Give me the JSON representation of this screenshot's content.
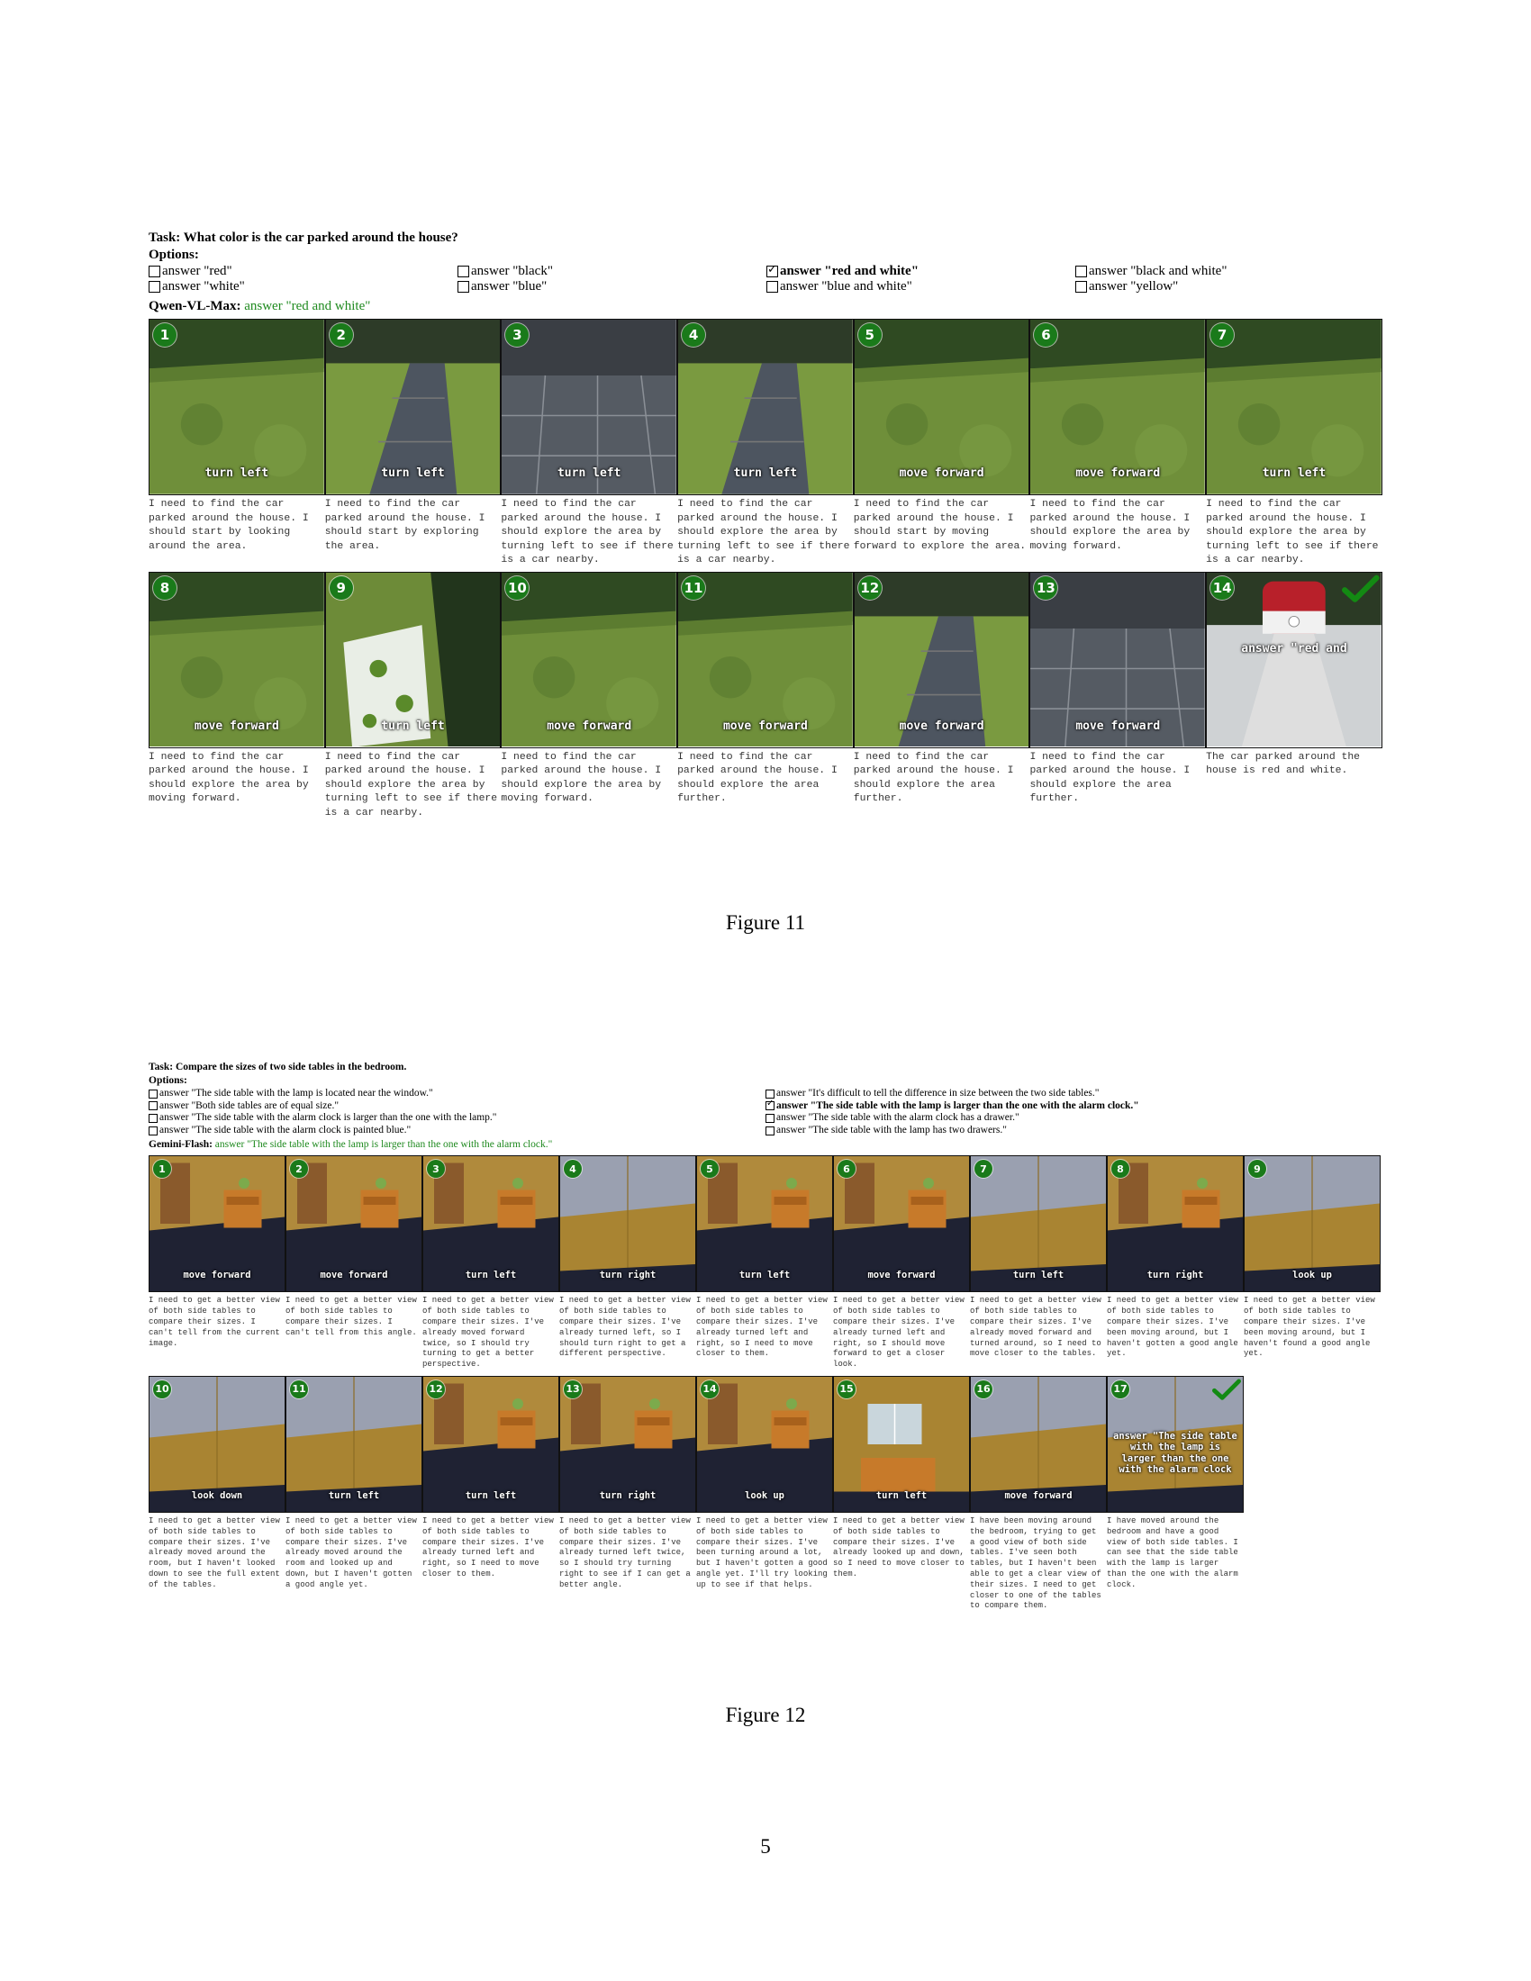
{
  "figure11": {
    "task": "Task: What color is the car parked around the house?",
    "options_label": "Options:",
    "options": [
      {
        "text": "answer \"red\"",
        "checked": false
      },
      {
        "text": "answer \"black\"",
        "checked": false
      },
      {
        "text": "answer \"red and white\"",
        "checked": true
      },
      {
        "text": "answer \"black and white\"",
        "checked": false
      },
      {
        "text": "answer \"white\"",
        "checked": false
      },
      {
        "text": "answer \"blue\"",
        "checked": false
      },
      {
        "text": "answer \"blue and white\"",
        "checked": false
      },
      {
        "text": "answer \"yellow\"",
        "checked": false
      }
    ],
    "model_name": "Qwen-VL-Max:",
    "model_answer": "answer \"red and white\"",
    "steps": [
      {
        "num": "1",
        "action": "turn left",
        "scene": "grass",
        "reason": "I need to find the car parked around the house. I should start by looking around the area."
      },
      {
        "num": "2",
        "action": "turn left",
        "scene": "path",
        "reason": "I need to find the car parked around the house. I should start by exploring the area."
      },
      {
        "num": "3",
        "action": "turn left",
        "scene": "patio",
        "reason": "I need to find the car parked around the house. I should explore the area by turning left to see if there is a car nearby."
      },
      {
        "num": "4",
        "action": "turn left",
        "scene": "path",
        "reason": "I need to find the car parked around the house. I should explore the area by turning left to see if there is a car nearby."
      },
      {
        "num": "5",
        "action": "move forward",
        "scene": "grass",
        "reason": "I need to find the car parked around the house. I should start by moving forward to explore the area."
      },
      {
        "num": "6",
        "action": "move forward",
        "scene": "grass",
        "reason": "I need to find the car parked around the house. I should explore the area by moving forward."
      },
      {
        "num": "7",
        "action": "turn left",
        "scene": "grass",
        "reason": "I need to find the car parked around the house. I should explore the area by turning left to see if there is a car nearby."
      },
      {
        "num": "8",
        "action": "move forward",
        "scene": "grass",
        "reason": "I need to find the car parked around the house. I should explore the area by moving forward."
      },
      {
        "num": "9",
        "action": "turn left",
        "scene": "hedge",
        "reason": "I need to find the car parked around the house. I should explore the area by turning left to see if there is a car nearby."
      },
      {
        "num": "10",
        "action": "move forward",
        "scene": "grass",
        "reason": "I need to find the car parked around the house. I should explore the area by moving forward."
      },
      {
        "num": "11",
        "action": "move forward",
        "scene": "grass",
        "reason": "I need to find the car parked around the house. I should explore the area further."
      },
      {
        "num": "12",
        "action": "move forward",
        "scene": "path",
        "reason": "I need to find the car parked around the house. I should explore the area further."
      },
      {
        "num": "13",
        "action": "move forward",
        "scene": "patio",
        "reason": "I need to find the car parked around the house. I should explore the area further."
      },
      {
        "num": "14",
        "action": "answer \"red and",
        "scene": "car",
        "reason": "The car parked around the house is red and white.",
        "final": true
      }
    ],
    "caption": "Figure 11"
  },
  "figure12": {
    "task": "Task: Compare the sizes of two side tables in the bedroom.",
    "options_label": "Options:",
    "options": [
      {
        "text": "answer \"The side table with the lamp is located near the window.\"",
        "checked": false
      },
      {
        "text": "answer \"It's difficult to tell the difference in size between the two side tables.\"",
        "checked": false
      },
      {
        "text": "answer \"Both side tables are of equal size.\"",
        "checked": false
      },
      {
        "text": "answer \"The side table with the lamp is larger than the one with the alarm clock.\"",
        "checked": true
      },
      {
        "text": "answer \"The side table with the alarm clock is larger than the one with the lamp.\"",
        "checked": false
      },
      {
        "text": "answer \"The side table with the alarm clock has a drawer.\"",
        "checked": false
      },
      {
        "text": "answer \"The side table with the alarm clock is painted blue.\"",
        "checked": false
      },
      {
        "text": "answer \"The side table with the lamp has two drawers.\"",
        "checked": false
      }
    ],
    "model_name": "Gemini-Flash:",
    "model_answer": "answer \"The side table with the lamp is larger than the one with the alarm clock.\"",
    "steps": [
      {
        "num": "1",
        "action": "move forward",
        "scene": "room",
        "reason": "I need to get a better view of both side tables to compare their sizes. I can't tell from the current image."
      },
      {
        "num": "2",
        "action": "move forward",
        "scene": "room",
        "reason": "I need to get a better view of both side tables to compare their sizes. I can't tell from this angle."
      },
      {
        "num": "3",
        "action": "turn left",
        "scene": "room",
        "reason": "I need to get a better view of both side tables to compare their sizes. I've already moved forward twice, so I should try turning to get a better perspective."
      },
      {
        "num": "4",
        "action": "turn right",
        "scene": "wall",
        "reason": "I need to get a better view of both side tables to compare their sizes. I've already turned left, so I should turn right to get a different perspective."
      },
      {
        "num": "5",
        "action": "turn left",
        "scene": "room",
        "reason": "I need to get a better view of both side tables to compare their sizes. I've already turned left and right, so I need to move closer to them."
      },
      {
        "num": "6",
        "action": "move forward",
        "scene": "room",
        "reason": "I need to get a better view of both side tables to compare their sizes. I've already turned left and right, so I should move forward to get a closer look."
      },
      {
        "num": "7",
        "action": "turn left",
        "scene": "wall",
        "reason": "I need to get a better view of both side tables to compare their sizes. I've already moved forward and turned around, so I need to move closer to the tables."
      },
      {
        "num": "8",
        "action": "turn right",
        "scene": "room",
        "reason": "I need to get a better view of both side tables to compare their sizes. I've been moving around, but I haven't gotten a good angle yet."
      },
      {
        "num": "9",
        "action": "look up",
        "scene": "wall",
        "reason": "I need to get a better view of both side tables to compare their sizes. I've been moving around, but I haven't found a good angle yet."
      },
      {
        "num": "10",
        "action": "look down",
        "scene": "wall",
        "reason": "I need to get a better view of both side tables to compare their sizes. I've already moved around the room, but I haven't looked down to see the full extent of the tables."
      },
      {
        "num": "11",
        "action": "turn left",
        "scene": "wall",
        "reason": "I need to get a better view of both side tables to compare their sizes. I've already moved around the room and looked up and down, but I haven't gotten a good angle yet."
      },
      {
        "num": "12",
        "action": "turn left",
        "scene": "room",
        "reason": "I need to get a better view of both side tables to compare their sizes. I've already turned left and right, so I need to move closer to them."
      },
      {
        "num": "13",
        "action": "turn right",
        "scene": "room",
        "reason": "I need to get a better view of both side tables to compare their sizes. I've already turned left twice, so I should try turning right to see if I can get a better angle."
      },
      {
        "num": "14",
        "action": "look up",
        "scene": "room",
        "reason": "I need to get a better view of both side tables to compare their sizes. I've been turning around a lot, but I haven't gotten a good angle yet. I'll try looking up to see if that helps."
      },
      {
        "num": "15",
        "action": "turn left",
        "scene": "window",
        "reason": "I need to get a better view of both side tables to compare their sizes. I've already looked up and down, so I need to move closer to them."
      },
      {
        "num": "16",
        "action": "move forward",
        "scene": "wall",
        "reason": "I have been moving around the bedroom, trying to get a good view of both side tables. I've seen both tables, but I haven't been able to get a clear view of their sizes. I need to get closer to one of the tables to compare them."
      },
      {
        "num": "17",
        "action": "answer \"The side table with the lamp is larger than the one with the alarm clock",
        "scene": "wall",
        "reason": "I have moved around the bedroom and have a good view of both side tables. I can see that the side table with the lamp is larger than the one with the alarm clock.",
        "final": true
      }
    ],
    "caption": "Figure 12"
  },
  "page_number": "5"
}
